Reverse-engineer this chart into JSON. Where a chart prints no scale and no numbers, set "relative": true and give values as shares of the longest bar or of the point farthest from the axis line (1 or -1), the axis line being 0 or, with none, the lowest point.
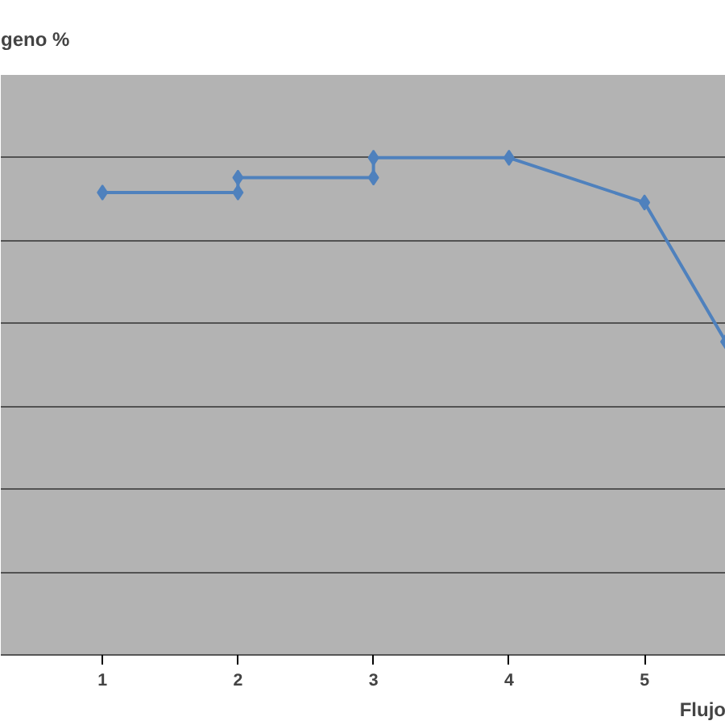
{
  "chart_data": {
    "type": "line",
    "relative": true,
    "annotations": [
      "geno %"
    ],
    "xlabel": "Flujo",
    "x": [
      1,
      2,
      2,
      3,
      3,
      4,
      5,
      5.6
    ],
    "series": [
      {
        "color": "#4f81bd",
        "values": [
          0.93,
          0.93,
          0.96,
          0.96,
          1,
          1,
          0.91,
          0.63
        ]
      }
    ],
    "xlim": [
      0.25,
      5.6
    ],
    "xticks": [
      1,
      2,
      3,
      4,
      5
    ],
    "grid": "y",
    "marker": "diamond",
    "line_style": "solid"
  }
}
